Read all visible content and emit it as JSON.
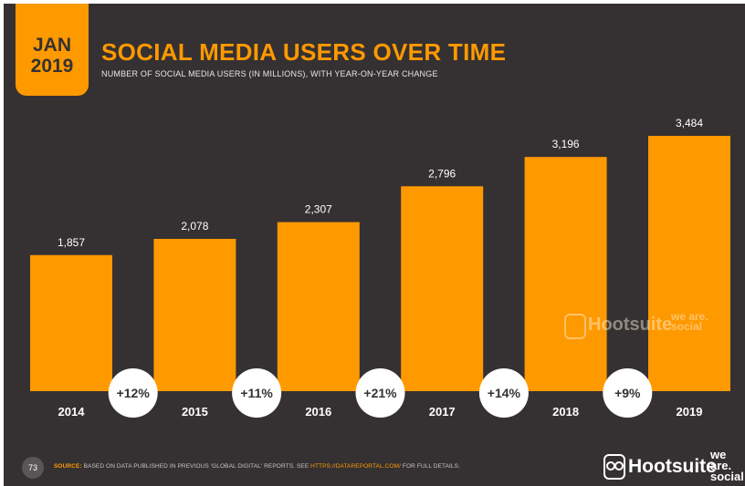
{
  "header": {
    "date_month": "JAN",
    "date_year": "2019",
    "title": "SOCIAL MEDIA USERS OVER TIME",
    "subtitle": "NUMBER OF SOCIAL MEDIA USERS (IN MILLIONS), WITH YEAR-ON-YEAR CHANGE"
  },
  "chart_data": {
    "type": "bar",
    "title": "SOCIAL MEDIA USERS OVER TIME",
    "subtitle": "NUMBER OF SOCIAL MEDIA USERS (IN MILLIONS), WITH YEAR-ON-YEAR CHANGE",
    "categories": [
      "2014",
      "2015",
      "2016",
      "2017",
      "2018",
      "2019"
    ],
    "values": [
      1857,
      2078,
      2307,
      2796,
      3196,
      3484
    ],
    "value_labels": [
      "1,857",
      "2,078",
      "2,307",
      "2,796",
      "3,196",
      "3,484"
    ],
    "changes": [
      "+12%",
      "+11%",
      "+21%",
      "+14%",
      "+9%"
    ],
    "ylim": [
      0,
      3484
    ],
    "grid": false,
    "legend": "none"
  },
  "watermark": {
    "brand": "Hootsuite",
    "partner": "we are. social"
  },
  "footer": {
    "page_number": "73",
    "source_label": "SOURCE:",
    "source_text": "BASED ON DATA PUBLISHED IN PREVIOUS 'GLOBAL DIGITAL' REPORTS. SEE ",
    "source_url": "HTTPS://DATAREPORTAL.COM/",
    "source_suffix": " FOR FULL DETAILS.",
    "brand": "Hootsuite",
    "partner": "we are. social"
  },
  "colors": {
    "background": "#353132",
    "accent": "#ff9900",
    "label_text": "#ffffff",
    "bubble": "#ffffff",
    "bubble_text": "#353132"
  }
}
